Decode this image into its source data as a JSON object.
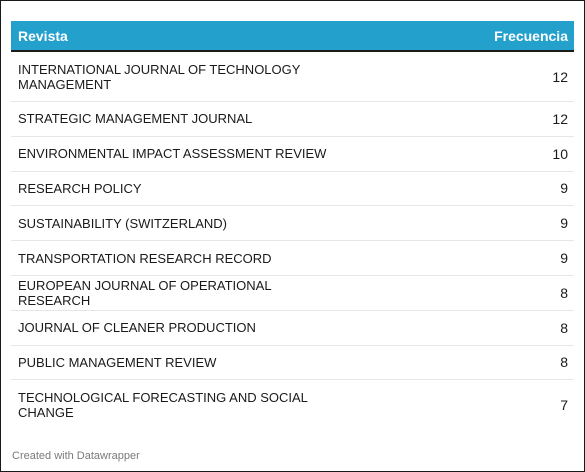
{
  "chart_data": {
    "type": "table",
    "columns": [
      "Revista",
      "Frecuencia"
    ],
    "rows": [
      {
        "revista": "INTERNATIONAL JOURNAL OF TECHNOLOGY MANAGEMENT",
        "frecuencia": "12"
      },
      {
        "revista": "STRATEGIC MANAGEMENT JOURNAL",
        "frecuencia": "12"
      },
      {
        "revista": "ENVIRONMENTAL IMPACT ASSESSMENT REVIEW",
        "frecuencia": "10"
      },
      {
        "revista": "RESEARCH POLICY",
        "frecuencia": "9"
      },
      {
        "revista": "SUSTAINABILITY (SWITZERLAND)",
        "frecuencia": "9"
      },
      {
        "revista": "TRANSPORTATION RESEARCH RECORD",
        "frecuencia": "9"
      },
      {
        "revista": "EUROPEAN JOURNAL OF OPERATIONAL RESEARCH",
        "frecuencia": "8"
      },
      {
        "revista": "JOURNAL OF CLEANER PRODUCTION",
        "frecuencia": "8"
      },
      {
        "revista": "PUBLIC MANAGEMENT REVIEW",
        "frecuencia": "8"
      },
      {
        "revista": "TECHNOLOGICAL FORECASTING AND SOCIAL CHANGE",
        "frecuencia": "7"
      }
    ],
    "header_color": "#23a0cc"
  },
  "footer": {
    "credit": "Created with Datawrapper"
  }
}
